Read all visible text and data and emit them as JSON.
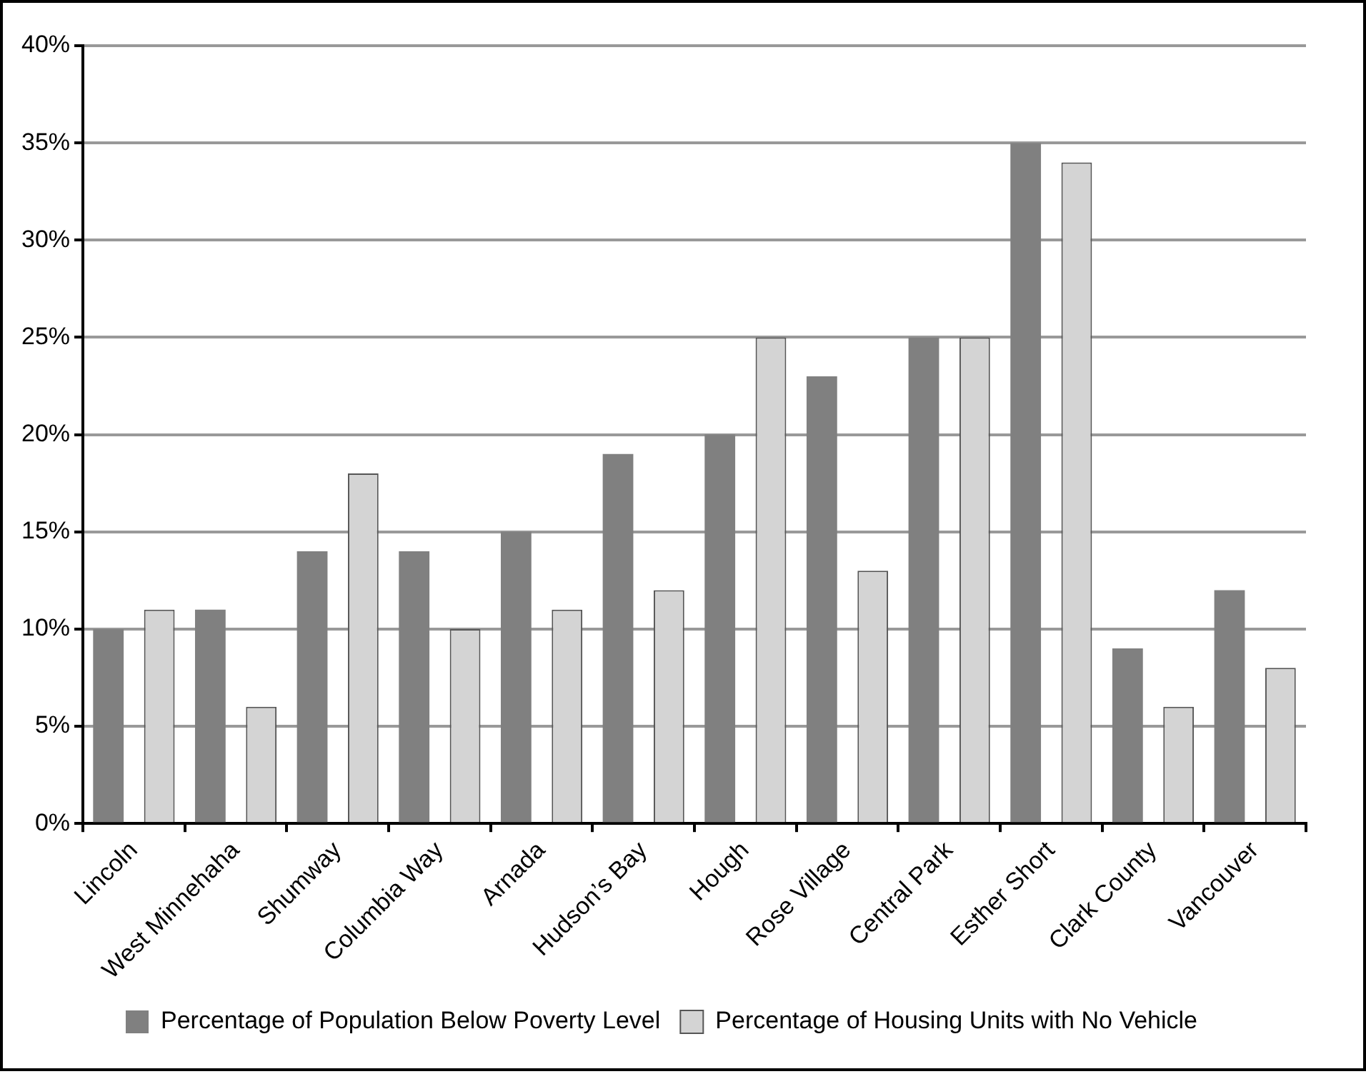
{
  "chart_data": {
    "type": "bar",
    "categories": [
      "Lincoln",
      "West Minnehaha",
      "Shumway",
      "Columbia Way",
      "Arnada",
      "Hudson’s Bay",
      "Hough",
      "Rose Village",
      "Central Park",
      "Esther Short",
      "Clark County",
      "Vancouver"
    ],
    "series": [
      {
        "name": "Percentage of Population Below Poverty Level",
        "color": "#808080",
        "values": [
          10,
          11,
          14,
          14,
          15,
          19,
          20,
          23,
          25,
          35,
          9,
          12
        ]
      },
      {
        "name": "Percentage of Housing Units with No Vehicle",
        "color": "#d4d4d4",
        "values": [
          11,
          6,
          18,
          10,
          11,
          12,
          25,
          13,
          25,
          34,
          6,
          8
        ]
      }
    ],
    "ylim": [
      0,
      40
    ],
    "yticks": [
      {
        "value": 0,
        "label": "0%"
      },
      {
        "value": 5,
        "label": "5%"
      },
      {
        "value": 10,
        "label": "10%"
      },
      {
        "value": 15,
        "label": "15%"
      },
      {
        "value": 20,
        "label": "20%"
      },
      {
        "value": 25,
        "label": "25%"
      },
      {
        "value": 30,
        "label": "30%"
      },
      {
        "value": 35,
        "label": "35%"
      },
      {
        "value": 40,
        "label": "40%"
      }
    ],
    "grid": "y",
    "legend": "bottom"
  }
}
